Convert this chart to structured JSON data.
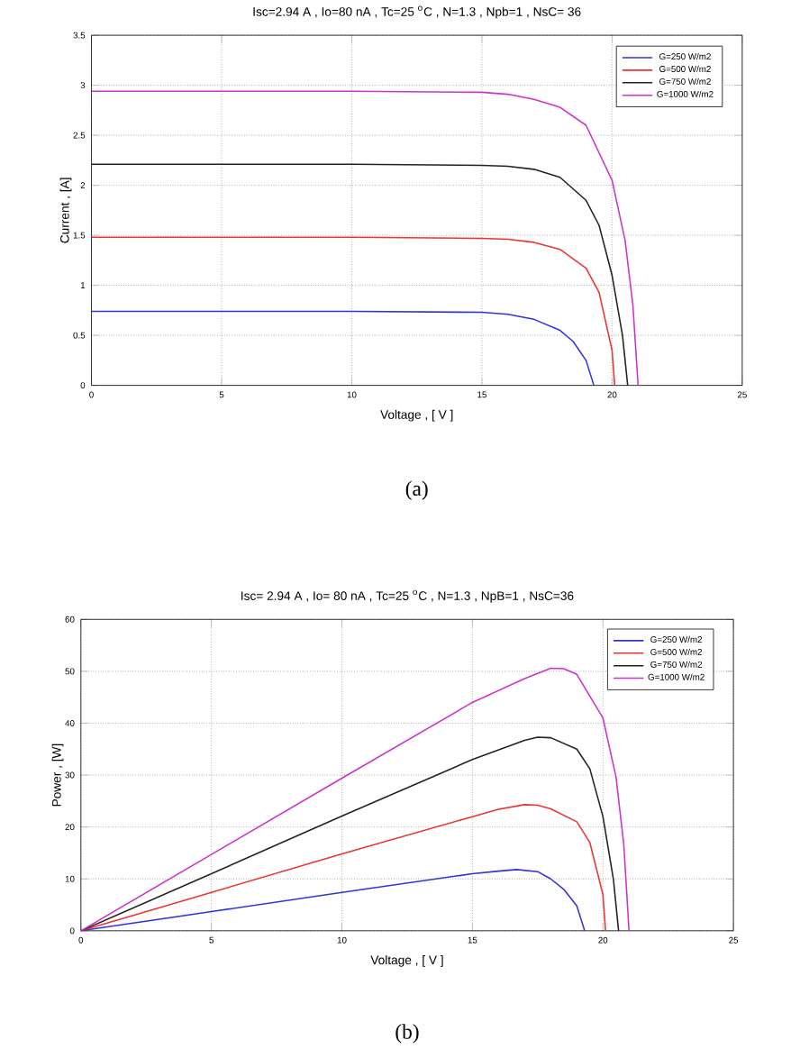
{
  "chart_data": [
    {
      "type": "line",
      "title": "Isc=2.94 A , Io=80 nA , Tc=25 $^{o}$C , N=1.3 , Npb=1 , NsC= 36",
      "xlabel": "Voltage , [ V ]",
      "ylabel": "Current , [A]",
      "xlim": [
        0,
        25
      ],
      "ylim": [
        0,
        3.5
      ],
      "xticks": [
        0,
        5,
        10,
        15,
        20,
        25
      ],
      "yticks": [
        0,
        0.5,
        1,
        1.5,
        2,
        2.5,
        3,
        3.5
      ],
      "grid": true,
      "legend": "top right",
      "annotations": [
        "(a)"
      ],
      "series": [
        {
          "name": "G=250 W/m2",
          "color": "#3333dd",
          "x": [
            0,
            5,
            10,
            15,
            16,
            17,
            18,
            18.5,
            19,
            19.3
          ],
          "values": [
            0.74,
            0.74,
            0.74,
            0.73,
            0.71,
            0.66,
            0.55,
            0.44,
            0.25,
            0
          ]
        },
        {
          "name": "G=500 W/m2",
          "color": "#ee3333",
          "x": [
            0,
            5,
            10,
            15,
            16,
            17,
            18,
            19,
            19.5,
            20,
            20.1
          ],
          "values": [
            1.48,
            1.48,
            1.48,
            1.47,
            1.46,
            1.43,
            1.36,
            1.17,
            0.93,
            0.35,
            0
          ]
        },
        {
          "name": "G=750 W/m2",
          "color": "#222222",
          "x": [
            0,
            5,
            10,
            15,
            16,
            17,
            18,
            19,
            19.5,
            20,
            20.4,
            20.6
          ],
          "values": [
            2.21,
            2.21,
            2.21,
            2.2,
            2.19,
            2.16,
            2.08,
            1.85,
            1.6,
            1.1,
            0.5,
            0
          ]
        },
        {
          "name": "G=1000 W/m2",
          "color": "#cc33cc",
          "x": [
            0,
            5,
            10,
            15,
            16,
            17,
            18,
            19,
            20,
            20.5,
            20.8,
            21.0
          ],
          "values": [
            2.94,
            2.94,
            2.94,
            2.93,
            2.91,
            2.86,
            2.78,
            2.6,
            2.05,
            1.45,
            0.8,
            0
          ]
        }
      ]
    },
    {
      "type": "line",
      "title": "Isc= 2.94 A , Io= 80 nA , Tc=25 $^{o}$C , N=1.3 , NpB=1 , NsC=36",
      "xlabel": "Voltage , [ V ]",
      "ylabel": "Power , [W]",
      "xlim": [
        0,
        25
      ],
      "ylim": [
        0,
        60
      ],
      "xticks": [
        0,
        5,
        10,
        15,
        20,
        25
      ],
      "yticks": [
        0,
        10,
        20,
        30,
        40,
        50,
        60
      ],
      "grid": true,
      "legend": "top right",
      "annotations": [
        "(b)"
      ],
      "series": [
        {
          "name": "G=250 W/m2",
          "color": "#3333dd",
          "x": [
            0,
            5,
            10,
            15,
            16,
            16.7,
            17.5,
            18,
            18.5,
            19,
            19.3
          ],
          "values": [
            0,
            3.7,
            7.4,
            11,
            11.5,
            11.8,
            11.4,
            10,
            8,
            4.8,
            0
          ]
        },
        {
          "name": "G=500 W/m2",
          "color": "#ee3333",
          "x": [
            0,
            5,
            10,
            15,
            16,
            17,
            17.5,
            18,
            19,
            19.5,
            20,
            20.1
          ],
          "values": [
            0,
            7.4,
            14.8,
            22,
            23.4,
            24.3,
            24.2,
            23.5,
            21,
            17,
            7,
            0
          ]
        },
        {
          "name": "G=750 W/m2",
          "color": "#222222",
          "x": [
            0,
            5,
            10,
            15,
            17,
            17.5,
            18,
            19,
            19.5,
            20,
            20.4,
            20.6
          ],
          "values": [
            0,
            11,
            22.1,
            33,
            36.7,
            37.3,
            37.2,
            35,
            31.2,
            22,
            10,
            0
          ]
        },
        {
          "name": "G=1000 W/m2",
          "color": "#cc33cc",
          "x": [
            0,
            5,
            10,
            15,
            17,
            18,
            18.5,
            19,
            20,
            20.5,
            20.8,
            21.0
          ],
          "values": [
            0,
            14.7,
            29.4,
            44,
            48.6,
            50.6,
            50.5,
            49.4,
            41,
            29.7,
            16.6,
            0
          ]
        }
      ]
    }
  ]
}
